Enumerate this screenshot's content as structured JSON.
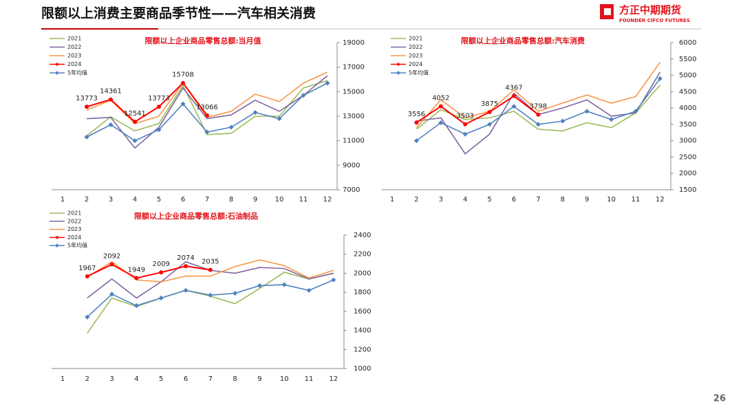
{
  "header": {
    "title": "限额以上消费主要商品季节性——汽车相关消费",
    "logo": "方正中期期货",
    "logo_en": "FOUNDER CIFCO FUTURES",
    "page": "26"
  },
  "chart_data": [
    {
      "type": "line",
      "title": "限额以上企业商品零售总额:当月值",
      "categories": [
        1,
        2,
        3,
        4,
        5,
        6,
        7,
        8,
        9,
        10,
        11,
        12
      ],
      "ylim": [
        7000,
        19000
      ],
      "yticks": [
        7000,
        9000,
        11000,
        13000,
        15000,
        17000,
        19000
      ],
      "series": [
        {
          "name": "2021",
          "color": "#9bbb59",
          "values": [
            null,
            11400,
            12950,
            11800,
            12400,
            15500,
            11500,
            11600,
            13000,
            13000,
            15300,
            15900
          ]
        },
        {
          "name": "2022",
          "color": "#8064a2",
          "values": [
            null,
            12800,
            12900,
            10400,
            12100,
            15300,
            12800,
            13100,
            14300,
            13400,
            14700,
            16300
          ]
        },
        {
          "name": "2023",
          "color": "#f79646",
          "values": [
            null,
            13500,
            14300,
            12400,
            13000,
            15700,
            12900,
            13400,
            14800,
            14200,
            15700,
            16600
          ]
        },
        {
          "name": "2024",
          "color": "#ff0000",
          "marker": "circle",
          "values": [
            null,
            13773,
            14361,
            12541,
            13773,
            15708,
            13066,
            null,
            null,
            null,
            null,
            null
          ]
        },
        {
          "name": "5年均值",
          "color": "#4f81bd",
          "marker": "diamond",
          "values": [
            null,
            11300,
            12300,
            11000,
            11900,
            14000,
            11700,
            12100,
            13300,
            12800,
            14700,
            15700
          ]
        }
      ]
    },
    {
      "type": "line",
      "title": "限额以上企业商品零售总额:汽车消费",
      "categories": [
        1,
        2,
        3,
        4,
        5,
        6,
        7,
        8,
        9,
        10,
        11,
        12
      ],
      "ylim": [
        1500,
        6000
      ],
      "yticks": [
        1500,
        2000,
        2500,
        3000,
        3500,
        4000,
        4500,
        5000,
        5500,
        6000
      ],
      "series": [
        {
          "name": "2021",
          "color": "#9bbb59",
          "values": [
            null,
            3350,
            3950,
            3650,
            3700,
            3900,
            3350,
            3300,
            3550,
            3400,
            3850,
            4700
          ]
        },
        {
          "name": "2022",
          "color": "#8064a2",
          "values": [
            null,
            3600,
            3700,
            2600,
            3200,
            4450,
            3800,
            4000,
            4250,
            3750,
            3850,
            5100
          ]
        },
        {
          "name": "2023",
          "color": "#f79646",
          "values": [
            null,
            3400,
            4250,
            3700,
            3900,
            4550,
            3900,
            4150,
            4400,
            4150,
            4350,
            5400
          ]
        },
        {
          "name": "2024",
          "color": "#ff0000",
          "marker": "circle",
          "values": [
            null,
            3556,
            4052,
            3503,
            3875,
            4367,
            3798,
            null,
            null,
            null,
            null,
            null
          ]
        },
        {
          "name": "5年均值",
          "color": "#4f81bd",
          "marker": "diamond",
          "values": [
            null,
            3000,
            3550,
            3200,
            3500,
            4050,
            3500,
            3600,
            3900,
            3650,
            3900,
            4900
          ]
        }
      ]
    },
    {
      "type": "line",
      "title": "限额以上企业商品零售总额:石油制品",
      "categories": [
        1,
        2,
        3,
        4,
        5,
        6,
        7,
        8,
        9,
        10,
        11,
        12
      ],
      "ylim": [
        1000,
        2400
      ],
      "yticks": [
        1000,
        1200,
        1400,
        1600,
        1800,
        2000,
        2200,
        2400
      ],
      "series": [
        {
          "name": "2021",
          "color": "#9bbb59",
          "values": [
            null,
            1370,
            1740,
            1650,
            1740,
            1820,
            1760,
            1680,
            1840,
            2010,
            1940,
            2000
          ]
        },
        {
          "name": "2022",
          "color": "#8064a2",
          "values": [
            null,
            1740,
            1940,
            1740,
            1910,
            2120,
            2030,
            2000,
            2060,
            2050,
            1940,
            2000
          ]
        },
        {
          "name": "2023",
          "color": "#f79646",
          "values": [
            null,
            1960,
            2120,
            1930,
            1910,
            1970,
            1970,
            2070,
            2140,
            2080,
            1950,
            2030
          ]
        },
        {
          "name": "2024",
          "color": "#ff0000",
          "marker": "circle",
          "values": [
            null,
            1967,
            2092,
            1949,
            2009,
            2074,
            2035,
            null,
            null,
            null,
            null,
            null
          ]
        },
        {
          "name": "5年均值",
          "color": "#4f81bd",
          "marker": "diamond",
          "values": [
            null,
            1540,
            1780,
            1660,
            1740,
            1820,
            1770,
            1790,
            1870,
            1880,
            1820,
            1930
          ]
        }
      ]
    }
  ]
}
